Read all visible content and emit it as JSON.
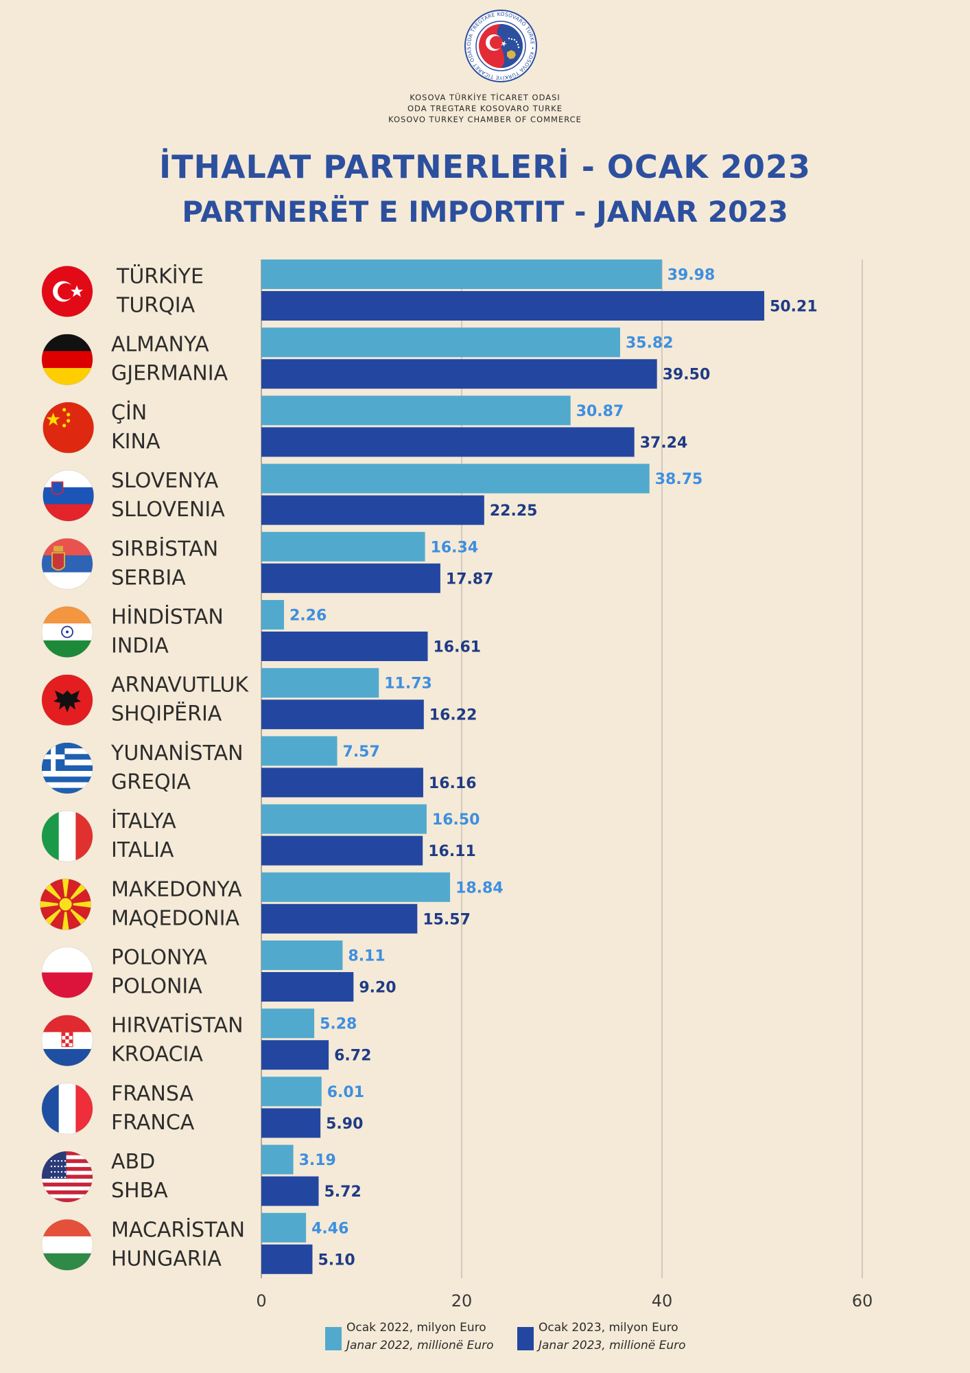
{
  "header": {
    "chamber_lines": [
      "KOSOVA TÜRKİYE TİCARET ODASI",
      "ODA TREGTARE KOSOVARO TURKE",
      "KOSOVO TURKEY CHAMBER OF COMMERCE"
    ],
    "logo_ring_text": "ODA TREGTARE KOSOVARO TURKE • KOSOVA TÜRKİYE TİCARET ODASI",
    "title_tr": "İTHALAT PARTNERLERİ - OCAK 2023",
    "title_sq": "PARTNERËT E IMPORTIT - JANAR 2023"
  },
  "colors": {
    "background": "#f5ead7",
    "series_2022": "#51aacd",
    "series_2023": "#2347a1",
    "label_2022": "#3d8fe0",
    "label_2023": "#1f3b86",
    "title": "#2c4f9e",
    "gridline": "#bdb6aa"
  },
  "chart_data": {
    "type": "bar",
    "orientation": "horizontal",
    "categories": [
      {
        "tr": "TÜRKİYE",
        "sq": "TURQIA",
        "flag": "turkey-flag-icon"
      },
      {
        "tr": "ALMANYA",
        "sq": "GJERMANIA",
        "flag": "germany-flag-icon"
      },
      {
        "tr": "ÇİN",
        "sq": "KINA",
        "flag": "china-flag-icon"
      },
      {
        "tr": "SLOVENYA",
        "sq": "SLLOVENIA",
        "flag": "slovenia-flag-icon"
      },
      {
        "tr": "SIRBİSTAN",
        "sq": "SERBIA",
        "flag": "serbia-flag-icon"
      },
      {
        "tr": "HİNDİSTAN",
        "sq": "INDIA",
        "flag": "india-flag-icon"
      },
      {
        "tr": "ARNAVUTLUK",
        "sq": "SHQIPËRIA",
        "flag": "albania-flag-icon"
      },
      {
        "tr": "YUNANİSTAN",
        "sq": "GREQIA",
        "flag": "greece-flag-icon"
      },
      {
        "tr": "İTALYA",
        "sq": "ITALIA",
        "flag": "italy-flag-icon"
      },
      {
        "tr": "MAKEDONYA",
        "sq": "MAQEDONIA",
        "flag": "north-macedonia-flag-icon"
      },
      {
        "tr": "POLONYA",
        "sq": "POLONIA",
        "flag": "poland-flag-icon"
      },
      {
        "tr": "HIRVATİSTAN",
        "sq": "KROACIA",
        "flag": "croatia-flag-icon"
      },
      {
        "tr": "FRANSA",
        "sq": "FRANCA",
        "flag": "france-flag-icon"
      },
      {
        "tr": "ABD",
        "sq": "SHBA",
        "flag": "usa-flag-icon"
      },
      {
        "tr": "MACARİSTAN",
        "sq": "HUNGARIA",
        "flag": "hungary-flag-icon"
      }
    ],
    "series": [
      {
        "name": "Ocak 2022, milyon Euro / Janar 2022, millionë Euro",
        "values": [
          39.98,
          35.82,
          30.87,
          38.75,
          16.34,
          2.26,
          11.73,
          7.57,
          16.5,
          18.84,
          8.11,
          5.28,
          6.01,
          3.19,
          4.46
        ],
        "labels": [
          "39.98",
          "35.82",
          "30.87",
          "38.75",
          "16.34",
          "2.26",
          "11.73",
          "7.57",
          "16.50",
          "18.84",
          "8.11",
          "5.28",
          "6.01",
          "3.19",
          "4.46"
        ]
      },
      {
        "name": "Ocak 2023, milyon Euro / Janar 2023, millionë Euro",
        "values": [
          50.21,
          39.5,
          37.24,
          22.25,
          17.87,
          16.61,
          16.22,
          16.16,
          16.11,
          15.57,
          9.2,
          6.72,
          5.9,
          5.72,
          5.1
        ],
        "labels": [
          "50.21",
          "39.50",
          "37.24",
          "22.25",
          "17.87",
          "16.61",
          "16.22",
          "16.16",
          "16.11",
          "15.57",
          "9.20",
          "6.72",
          "5.90",
          "5.72",
          "5.10"
        ]
      }
    ],
    "x_ticks": [
      "0",
      "20",
      "40",
      "60"
    ],
    "xlim": [
      0,
      60
    ],
    "grid": "vertical",
    "legend_position": "bottom"
  },
  "legend": [
    {
      "line1": "Ocak 2022, milyon Euro",
      "line2": "Janar 2022, millionë Euro"
    },
    {
      "line1": "Ocak 2023, milyon Euro",
      "line2": "Janar 2023, millionë Euro"
    }
  ]
}
